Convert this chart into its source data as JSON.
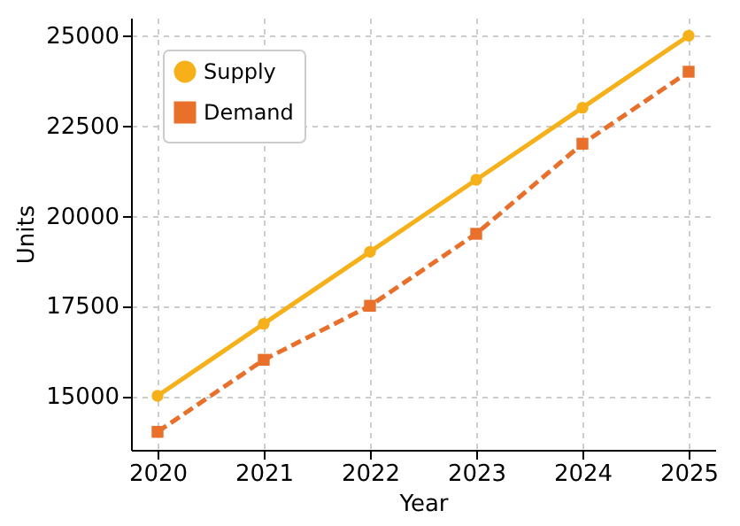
{
  "chart_data": {
    "type": "line",
    "xlabel": "Year",
    "ylabel": "Units",
    "x": [
      2020,
      2021,
      2022,
      2023,
      2024,
      2025
    ],
    "series": [
      {
        "name": "Supply",
        "color": "#f5b01a",
        "marker": "circle",
        "line_style": "solid",
        "values": [
          15000,
          17000,
          19000,
          21000,
          23000,
          25000
        ]
      },
      {
        "name": "Demand",
        "color": "#e8702a",
        "marker": "square",
        "line_style": "dashed",
        "values": [
          14000,
          16000,
          17500,
          19500,
          22000,
          24000
        ]
      }
    ],
    "xlim": [
      2019.75,
      2025.25
    ],
    "xticks": [
      2020,
      2021,
      2022,
      2023,
      2024,
      2025
    ],
    "ylim": [
      13500,
      25500
    ],
    "yticks": [
      15000,
      17500,
      20000,
      22500,
      25000
    ],
    "grid": true,
    "legend": "top left"
  }
}
